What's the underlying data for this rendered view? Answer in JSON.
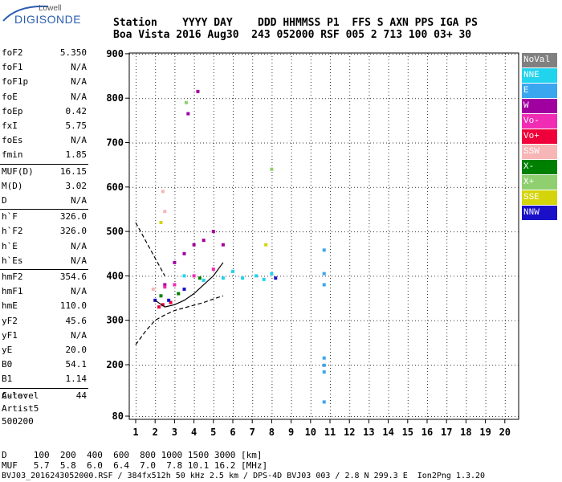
{
  "logo": {
    "top_text": "Lowell",
    "brand": "DIGISONDE"
  },
  "header": {
    "line1": "Station    YYYY DAY    DDD HHMMSS P1  FFS S AXN PPS IGA PS",
    "line2": "Boa Vista 2016 Aug30  243 052000 RSF 005 2 713 100 03+ 30"
  },
  "params": [
    {
      "label": "foF2",
      "value": "5.350"
    },
    {
      "label": "foF1",
      "value": "N/A"
    },
    {
      "label": "foF1p",
      "value": "N/A"
    },
    {
      "label": "foE",
      "value": "N/A"
    },
    {
      "label": "foEp",
      "value": "0.42"
    },
    {
      "label": "fxI",
      "value": "5.75"
    },
    {
      "label": "foEs",
      "value": "N/A"
    },
    {
      "label": "fmin",
      "value": "1.85"
    },
    {
      "label": "MUF(D)",
      "value": "16.15"
    },
    {
      "label": "M(D)",
      "value": "3.02"
    },
    {
      "label": "D",
      "value": "N/A"
    },
    {
      "label": "h`F",
      "value": "326.0"
    },
    {
      "label": "h`F2",
      "value": "326.0"
    },
    {
      "label": "h`E",
      "value": "N/A"
    },
    {
      "label": "h`Es",
      "value": "N/A"
    },
    {
      "label": "hmF2",
      "value": "354.6"
    },
    {
      "label": "hmF1",
      "value": "N/A"
    },
    {
      "label": "hmE",
      "value": "110.0"
    },
    {
      "label": "yF2",
      "value": "45.6"
    },
    {
      "label": "yF1",
      "value": "N/A"
    },
    {
      "label": "yE",
      "value": "20.0"
    },
    {
      "label": "B0",
      "value": "54.1"
    },
    {
      "label": "B1",
      "value": "1.14"
    },
    {
      "label": "C-level",
      "value": "44"
    }
  ],
  "auto": {
    "line1": "Auto:",
    "line2": "Artist5",
    "line3": "500200"
  },
  "legend": [
    {
      "label": "NoVal",
      "color": "#808080"
    },
    {
      "label": "NNE",
      "color": "#22d3ee"
    },
    {
      "label": "E",
      "color": "#3aa6f0"
    },
    {
      "label": "W",
      "color": "#a0009f"
    },
    {
      "label": "Vo-",
      "color": "#f02bb4"
    },
    {
      "label": "Vo+",
      "color": "#f0003a"
    },
    {
      "label": "SSW",
      "color": "#f7b5b5"
    },
    {
      "label": "X-",
      "color": "#008000"
    },
    {
      "label": "X+",
      "color": "#8fcf6f"
    },
    {
      "label": "SSE",
      "color": "#d4d40a"
    },
    {
      "label": "NNW",
      "color": "#1a10c8"
    }
  ],
  "footer": {
    "d_row": "D     100  200  400  600  800 1000 1500 3000 [km]",
    "muf_row": "MUF   5.7  5.8  6.0  6.4  7.0  7.8 10.1 16.2 [MHz]",
    "file_row": "BVJ03_2016243052000.RSF / 384fx512h 50 kHz 2.5 km / DPS-4D BVJ03 003 / 2.8 N 299.3 E  Ion2Png 1.3.20"
  },
  "chart_data": {
    "type": "scatter",
    "xlabel": "",
    "ylabel": "",
    "xlim": [
      1,
      20
    ],
    "ylim": [
      80,
      900
    ],
    "x_ticks": [
      1,
      2,
      3,
      4,
      5,
      6,
      7,
      8,
      9,
      10,
      11,
      12,
      13,
      14,
      15,
      16,
      17,
      18,
      19,
      20
    ],
    "y_ticks": [
      80,
      200,
      300,
      400,
      500,
      600,
      700,
      800,
      900
    ],
    "grid": true,
    "legend_position": "right",
    "series": [
      {
        "name": "NNE",
        "points": [
          [
            3.5,
            400
          ],
          [
            4.5,
            390
          ],
          [
            5.5,
            395
          ],
          [
            6.5,
            395
          ],
          [
            7.2,
            400
          ],
          [
            8.0,
            405
          ],
          [
            6.0,
            410
          ],
          [
            7.6,
            392
          ]
        ]
      },
      {
        "name": "E",
        "points": [
          [
            10.7,
            380
          ],
          [
            10.7,
            405
          ],
          [
            10.7,
            215
          ],
          [
            10.7,
            195
          ],
          [
            10.7,
            180
          ],
          [
            10.7,
            112
          ],
          [
            10.7,
            458
          ]
        ]
      },
      {
        "name": "W",
        "points": [
          [
            2.5,
            380
          ],
          [
            3.0,
            430
          ],
          [
            3.5,
            450
          ],
          [
            4.0,
            470
          ],
          [
            4.5,
            480
          ],
          [
            5.0,
            500
          ],
          [
            5.5,
            470
          ],
          [
            4.2,
            815
          ],
          [
            3.7,
            765
          ]
        ]
      },
      {
        "name": "Vo-",
        "points": [
          [
            2.5,
            375
          ],
          [
            3.0,
            380
          ],
          [
            4.0,
            400
          ],
          [
            5.0,
            415
          ]
        ]
      },
      {
        "name": "Vo+",
        "points": [
          [
            2.2,
            330
          ],
          [
            2.8,
            340
          ],
          [
            2.4,
            335
          ]
        ]
      },
      {
        "name": "SSW",
        "points": [
          [
            2.4,
            590
          ],
          [
            2.5,
            545
          ],
          [
            1.9,
            370
          ]
        ]
      },
      {
        "name": "X-",
        "points": [
          [
            2.3,
            355
          ],
          [
            3.2,
            360
          ],
          [
            4.3,
            395
          ]
        ]
      },
      {
        "name": "X+",
        "points": [
          [
            3.6,
            790
          ],
          [
            8.0,
            640
          ]
        ]
      },
      {
        "name": "SSE",
        "points": [
          [
            2.3,
            520
          ],
          [
            7.7,
            470
          ]
        ]
      },
      {
        "name": "NNW",
        "points": [
          [
            2.0,
            345
          ],
          [
            2.7,
            345
          ],
          [
            3.5,
            370
          ],
          [
            8.2,
            395
          ]
        ]
      }
    ],
    "curves": [
      {
        "name": "profile-lower",
        "x": [
          1,
          1.5,
          2,
          2.5,
          3,
          3.5,
          4,
          4.5,
          5,
          5.5
        ],
        "y": [
          245,
          275,
          300,
          312,
          322,
          328,
          334,
          340,
          348,
          355
        ]
      },
      {
        "name": "profile-upper",
        "x": [
          1,
          1.5,
          2,
          2.5
        ],
        "y": [
          520,
          480,
          440,
          400
        ]
      },
      {
        "name": "trace",
        "x": [
          2,
          2.5,
          3,
          3.5,
          4,
          4.5,
          5,
          5.5
        ],
        "y": [
          345,
          330,
          335,
          345,
          360,
          380,
          400,
          430
        ]
      }
    ]
  }
}
